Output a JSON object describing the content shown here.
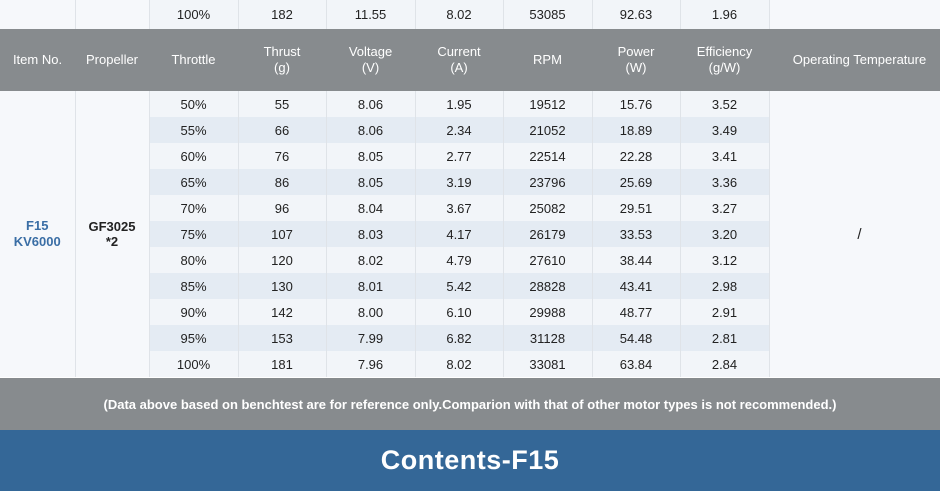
{
  "top_row": [
    "100%",
    "182",
    "11.55",
    "8.02",
    "53085",
    "92.63",
    "1.96"
  ],
  "headers": {
    "item_no": "Item No.",
    "propeller": "Propeller",
    "throttle": "Throttle",
    "thrust": "Thrust",
    "thrust_unit": "(g)",
    "voltage": "Voltage",
    "voltage_unit": "(V)",
    "current": "Current",
    "current_unit": "(A)",
    "rpm": "RPM",
    "power": "Power",
    "power_unit": "(W)",
    "efficiency": "Efficiency",
    "efficiency_unit": "(g/W)",
    "operating_temperature": "Operating Temperature"
  },
  "item": {
    "line1": "F15",
    "line2": "KV6000"
  },
  "propeller": {
    "line1": "GF3025",
    "line2": "*2"
  },
  "operating_temperature": "/",
  "rows": [
    [
      "50%",
      "55",
      "8.06",
      "1.95",
      "19512",
      "15.76",
      "3.52"
    ],
    [
      "55%",
      "66",
      "8.06",
      "2.34",
      "21052",
      "18.89",
      "3.49"
    ],
    [
      "60%",
      "76",
      "8.05",
      "2.77",
      "22514",
      "22.28",
      "3.41"
    ],
    [
      "65%",
      "86",
      "8.05",
      "3.19",
      "23796",
      "25.69",
      "3.36"
    ],
    [
      "70%",
      "96",
      "8.04",
      "3.67",
      "25082",
      "29.51",
      "3.27"
    ],
    [
      "75%",
      "107",
      "8.03",
      "4.17",
      "26179",
      "33.53",
      "3.20"
    ],
    [
      "80%",
      "120",
      "8.02",
      "4.79",
      "27610",
      "38.44",
      "3.12"
    ],
    [
      "85%",
      "130",
      "8.01",
      "5.42",
      "28828",
      "43.41",
      "2.98"
    ],
    [
      "90%",
      "142",
      "8.00",
      "6.10",
      "29988",
      "48.77",
      "2.91"
    ],
    [
      "95%",
      "153",
      "7.99",
      "6.82",
      "31128",
      "54.48",
      "2.81"
    ],
    [
      "100%",
      "181",
      "7.96",
      "8.02",
      "33081",
      "63.84",
      "2.84"
    ]
  ],
  "note": "(Data above based on benchtest are for reference only.Comparion with that of other motor types is not recommended.)",
  "footer_title": "Contents-F15"
}
